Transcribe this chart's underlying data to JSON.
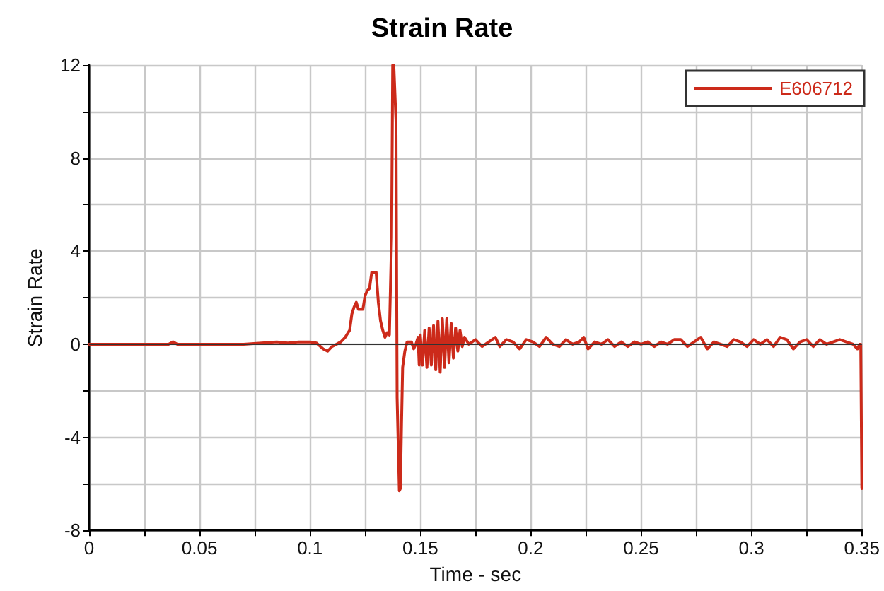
{
  "chart_data": {
    "type": "line",
    "title": "Strain Rate",
    "xlabel": "Time - sec",
    "ylabel": "Strain Rate",
    "xlim": [
      0,
      0.35
    ],
    "ylim": [
      -8,
      12
    ],
    "xticks": [
      0,
      {
        "value": 0.025,
        "label": null
      },
      0.05,
      {
        "value": 0.075,
        "label": null
      },
      0.1,
      {
        "value": 0.125,
        "label": null
      },
      0.15,
      {
        "value": 0.175,
        "label": null
      },
      0.2,
      {
        "value": 0.225,
        "label": null
      },
      0.25,
      {
        "value": 0.275,
        "label": null
      },
      0.3,
      {
        "value": 0.325,
        "label": null
      },
      0.35
    ],
    "yticks": [
      -8,
      {
        "value": -6,
        "label": null
      },
      -4,
      {
        "value": -2,
        "label": null
      },
      0,
      {
        "value": 2,
        "label": null
      },
      4,
      {
        "value": 6,
        "label": null
      },
      8,
      {
        "value": 10,
        "label": null
      },
      12
    ],
    "grid": true,
    "legend": "top right",
    "marker": "none",
    "line_style": "solid",
    "ref_lines": [
      {
        "axis": "y",
        "value": 0,
        "color": "#333333"
      }
    ],
    "series": [
      {
        "name": "E606712",
        "color": "#cc2a1a",
        "x": [
          0,
          0.012,
          0.036,
          0.038,
          0.04,
          0.07,
          0.085,
          0.09,
          0.095,
          0.1,
          0.103,
          0.106,
          0.108,
          0.11,
          0.112,
          0.114,
          0.116,
          0.118,
          0.119,
          0.12,
          0.121,
          0.122,
          0.124,
          0.125,
          0.126,
          0.127,
          0.128,
          0.13,
          0.131,
          0.132,
          0.133,
          0.134,
          0.135,
          0.136,
          0.137,
          0.1375,
          0.138,
          0.1385,
          0.139,
          0.1395,
          0.1405,
          0.141,
          0.1415,
          0.142,
          0.143,
          0.144,
          0.146,
          0.147,
          0.148,
          0.149,
          0.1495,
          0.15,
          0.151,
          0.152,
          0.153,
          0.154,
          0.155,
          0.156,
          0.157,
          0.158,
          0.159,
          0.16,
          0.161,
          0.162,
          0.163,
          0.164,
          0.165,
          0.166,
          0.167,
          0.168,
          0.169,
          0.17,
          0.172,
          0.175,
          0.178,
          0.181,
          0.184,
          0.186,
          0.189,
          0.192,
          0.195,
          0.198,
          0.201,
          0.204,
          0.207,
          0.21,
          0.213,
          0.216,
          0.219,
          0.222,
          0.224,
          0.226,
          0.229,
          0.232,
          0.235,
          0.238,
          0.241,
          0.244,
          0.247,
          0.25,
          0.253,
          0.256,
          0.259,
          0.262,
          0.265,
          0.268,
          0.271,
          0.274,
          0.277,
          0.28,
          0.283,
          0.286,
          0.289,
          0.292,
          0.295,
          0.298,
          0.301,
          0.304,
          0.307,
          0.31,
          0.313,
          0.316,
          0.319,
          0.322,
          0.325,
          0.328,
          0.331,
          0.334,
          0.337,
          0.34,
          0.343,
          0.346,
          0.348,
          0.349,
          0.3495,
          0.35
        ],
        "values": [
          0,
          0,
          0,
          0.1,
          0,
          0,
          0.1,
          0.05,
          0.1,
          0.1,
          0.05,
          -0.2,
          -0.3,
          -0.1,
          0,
          0.1,
          0.3,
          0.6,
          1.3,
          1.6,
          1.8,
          1.5,
          1.5,
          2.1,
          2.3,
          2.4,
          3.1,
          3.1,
          1.8,
          1.0,
          0.6,
          0.3,
          0.5,
          0.4,
          4.6,
          12,
          12,
          10.8,
          9.6,
          -2.3,
          -6.3,
          -6.2,
          -3.4,
          -1.0,
          -0.3,
          0.1,
          0.1,
          -0.2,
          0,
          0.3,
          -0.9,
          0.4,
          -0.9,
          0.6,
          -1.0,
          0.7,
          -0.9,
          0.8,
          -1.1,
          1.0,
          -1.2,
          1.1,
          -1.0,
          1.1,
          -0.8,
          0.9,
          -0.6,
          0.7,
          -0.3,
          0.6,
          -0.1,
          0.3,
          0,
          0.2,
          -0.1,
          0.1,
          0.3,
          -0.1,
          0.2,
          0.1,
          -0.2,
          0.2,
          0.1,
          -0.1,
          0.3,
          0,
          -0.1,
          0.2,
          0,
          0.1,
          0.3,
          -0.2,
          0.1,
          0,
          0.2,
          -0.1,
          0.1,
          -0.1,
          0.1,
          0,
          0.1,
          -0.1,
          0.1,
          0,
          0.2,
          0.2,
          -0.1,
          0.1,
          0.3,
          -0.2,
          0.1,
          0,
          -0.1,
          0.2,
          0.1,
          -0.1,
          0.2,
          0,
          0.2,
          -0.1,
          0.3,
          0.2,
          -0.2,
          0.1,
          0.2,
          -0.1,
          0.2,
          0,
          0.1,
          0.2,
          0.1,
          0,
          -0.2,
          0,
          0,
          -6.2
        ]
      }
    ]
  }
}
